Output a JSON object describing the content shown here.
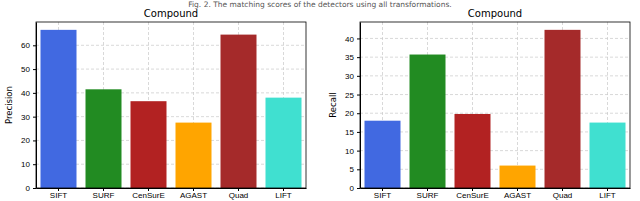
{
  "caption": "Fig. 2. The matching scores of the detectors using all transformations.",
  "chart_data": [
    {
      "type": "bar",
      "title": "Compound",
      "y_label": "Precision",
      "categories": [
        "SIFT",
        "SURF",
        "CenSurE",
        "AGAST",
        "Quad",
        "LIFT"
      ],
      "values": [
        66.5,
        41.5,
        36.5,
        27.5,
        64.5,
        38
      ],
      "colors": [
        "#4169e1",
        "#228b22",
        "#b22222",
        "#ffa500",
        "#a52a2a",
        "#40e0d0"
      ],
      "ylim": [
        0,
        69.8
      ],
      "yticks": [
        0,
        10,
        20,
        30,
        40,
        50,
        60
      ],
      "grid": true
    },
    {
      "type": "bar",
      "title": "Compound",
      "y_label": "Recall",
      "categories": [
        "SIFT",
        "SURF",
        "CenSurE",
        "AGAST",
        "Quad",
        "LIFT"
      ],
      "values": [
        18,
        35.7,
        19.8,
        6,
        42.3,
        17.5
      ],
      "colors": [
        "#4169e1",
        "#228b22",
        "#b22222",
        "#ffa500",
        "#a52a2a",
        "#40e0d0"
      ],
      "ylim": [
        0,
        44.4
      ],
      "yticks": [
        0,
        5,
        10,
        15,
        20,
        25,
        30,
        35,
        40
      ],
      "grid": true
    }
  ]
}
